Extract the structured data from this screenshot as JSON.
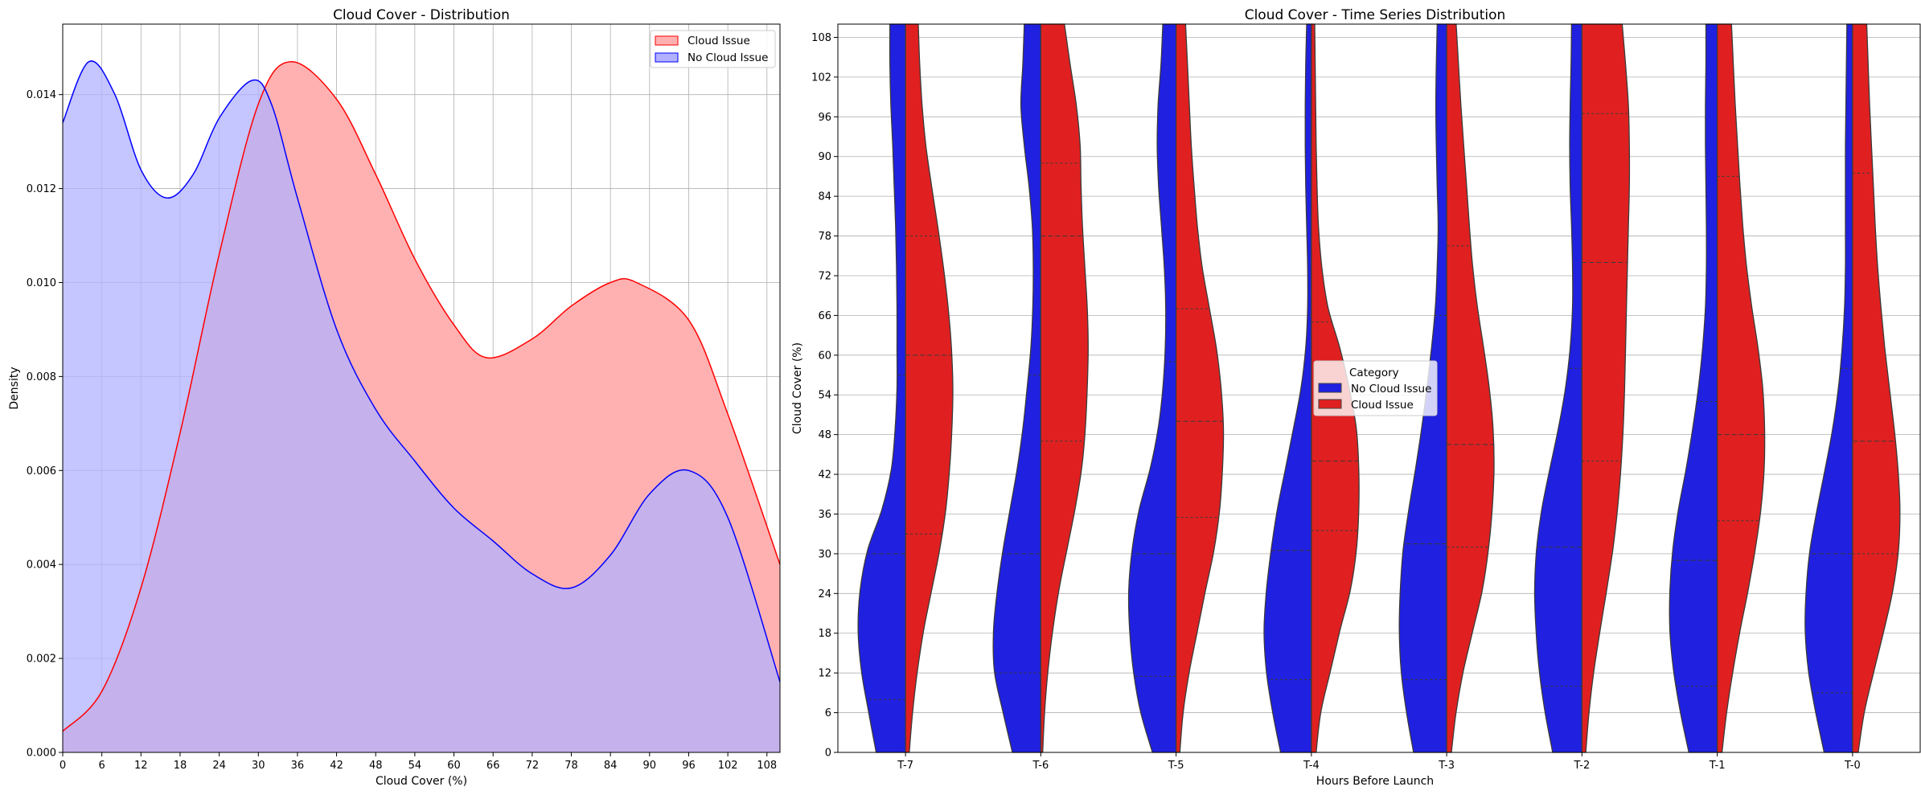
{
  "chart_data": [
    {
      "type": "area",
      "title": "Cloud Cover - Distribution",
      "xlabel": "Cloud Cover (%)",
      "ylabel": "Density",
      "xlim": [
        0,
        110
      ],
      "ylim": [
        0,
        0.0155
      ],
      "xticks": [
        "0",
        "6",
        "12",
        "18",
        "24",
        "30",
        "36",
        "42",
        "48",
        "54",
        "60",
        "66",
        "72",
        "78",
        "84",
        "90",
        "96",
        "102",
        "108"
      ],
      "yticks": [
        "0.000",
        "0.002",
        "0.004",
        "0.006",
        "0.008",
        "0.010",
        "0.012",
        "0.014"
      ],
      "grid": true,
      "legend_position": "top-right",
      "series": [
        {
          "name": "Cloud Issue",
          "color": "#ff0000",
          "fill": "#ffb1b1",
          "x": [
            0,
            6,
            12,
            18,
            24,
            30,
            35,
            42,
            48,
            54,
            60,
            65,
            72,
            78,
            84,
            88,
            96,
            102,
            110
          ],
          "y": [
            0.00045,
            0.0013,
            0.0035,
            0.0068,
            0.0106,
            0.0138,
            0.0147,
            0.0139,
            0.0123,
            0.0105,
            0.0091,
            0.0084,
            0.0088,
            0.0095,
            0.01,
            0.01,
            0.0092,
            0.0072,
            0.004
          ]
        },
        {
          "name": "No Cloud Issue",
          "color": "#0000ff",
          "fill": "#b1b1ff",
          "x": [
            0,
            4,
            8,
            12,
            16,
            20,
            24,
            29,
            32,
            36,
            42,
            48,
            54,
            60,
            66,
            72,
            78,
            84,
            90,
            96,
            102,
            110
          ],
          "y": [
            0.0134,
            0.0147,
            0.014,
            0.0124,
            0.0118,
            0.0123,
            0.0135,
            0.0143,
            0.0138,
            0.0118,
            0.009,
            0.0073,
            0.0062,
            0.0052,
            0.0045,
            0.0038,
            0.0035,
            0.0042,
            0.0055,
            0.006,
            0.005,
            0.0015
          ]
        }
      ]
    },
    {
      "type": "violin",
      "title": "Cloud Cover - Time Series Distribution",
      "xlabel": "Hours Before Launch",
      "ylabel": "Cloud Cover (%)",
      "categories": [
        "T-7",
        "T-6",
        "T-5",
        "T-4",
        "T-3",
        "T-2",
        "T-1",
        "T-0"
      ],
      "ylim": [
        0,
        110
      ],
      "yticks": [
        "0",
        "6",
        "12",
        "18",
        "24",
        "30",
        "36",
        "42",
        "48",
        "54",
        "60",
        "66",
        "72",
        "78",
        "84",
        "90",
        "96",
        "102",
        "108"
      ],
      "grid": true,
      "legend_title": "Category",
      "legend_position": "center",
      "series": [
        {
          "name": "No Cloud Issue",
          "color": "#2020e0",
          "widths": [
            [
              0.62,
              0.78,
              0.93,
              1.0,
              0.96,
              0.8,
              0.5,
              0.3,
              0.22,
              0.18,
              0.18,
              0.18,
              0.19,
              0.21,
              0.24,
              0.27,
              0.31,
              0.33,
              0.33
            ],
            [
              0.6,
              0.8,
              0.98,
              1.0,
              0.92,
              0.8,
              0.65,
              0.5,
              0.38,
              0.29,
              0.21,
              0.17,
              0.16,
              0.18,
              0.25,
              0.35,
              0.42,
              0.38,
              0.35
            ],
            [
              0.5,
              0.75,
              0.9,
              0.98,
              1.0,
              0.93,
              0.78,
              0.55,
              0.38,
              0.28,
              0.23,
              0.22,
              0.25,
              0.31,
              0.37,
              0.4,
              0.38,
              0.32,
              0.28
            ],
            [
              0.65,
              0.82,
              0.95,
              1.0,
              0.95,
              0.85,
              0.72,
              0.55,
              0.38,
              0.22,
              0.12,
              0.08,
              0.08,
              0.1,
              0.12,
              0.13,
              0.13,
              0.12,
              0.1
            ],
            [
              0.7,
              0.85,
              0.96,
              1.0,
              0.98,
              0.92,
              0.8,
              0.66,
              0.53,
              0.42,
              0.32,
              0.24,
              0.2,
              0.18,
              0.2,
              0.22,
              0.23,
              0.22,
              0.2
            ],
            [
              0.62,
              0.78,
              0.9,
              0.97,
              1.0,
              0.96,
              0.85,
              0.68,
              0.5,
              0.35,
              0.25,
              0.2,
              0.2,
              0.22,
              0.25,
              0.26,
              0.25,
              0.23,
              0.22
            ],
            [
              0.6,
              0.78,
              0.92,
              1.0,
              1.0,
              0.94,
              0.82,
              0.66,
              0.52,
              0.4,
              0.31,
              0.25,
              0.23,
              0.23,
              0.24,
              0.25,
              0.25,
              0.24,
              0.24
            ],
            [
              0.6,
              0.78,
              0.93,
              1.0,
              0.98,
              0.9,
              0.75,
              0.58,
              0.42,
              0.3,
              0.22,
              0.17,
              0.15,
              0.15,
              0.15,
              0.15,
              0.14,
              0.13,
              0.12
            ]
          ],
          "quartiles": [
            [
              8,
              30,
              57
            ],
            [
              12,
              30,
              57
            ],
            [
              11.5,
              30,
              59
            ],
            [
              11,
              30.5,
              66
            ],
            [
              11,
              31.5,
              66
            ],
            [
              10,
              31,
              58
            ],
            [
              10,
              29,
              53
            ],
            [
              9,
              30,
              58
            ]
          ]
        },
        {
          "name": "Cloud Issue",
          "color": "#e02020",
          "widths": [
            [
              0.08,
              0.15,
              0.25,
              0.38,
              0.55,
              0.72,
              0.85,
              0.93,
              0.98,
              1.0,
              0.97,
              0.9,
              0.8,
              0.68,
              0.55,
              0.43,
              0.35,
              0.3,
              0.27
            ],
            [
              0.04,
              0.08,
              0.15,
              0.25,
              0.38,
              0.55,
              0.72,
              0.86,
              0.94,
              0.98,
              1.0,
              0.98,
              0.93,
              0.88,
              0.85,
              0.83,
              0.75,
              0.62,
              0.5
            ],
            [
              0.08,
              0.15,
              0.28,
              0.45,
              0.62,
              0.8,
              0.92,
              0.98,
              1.0,
              0.95,
              0.85,
              0.7,
              0.55,
              0.45,
              0.38,
              0.32,
              0.28,
              0.24,
              0.2
            ],
            [
              0.1,
              0.2,
              0.4,
              0.6,
              0.82,
              0.95,
              1.0,
              1.0,
              0.95,
              0.8,
              0.6,
              0.35,
              0.22,
              0.15,
              0.12,
              0.1,
              0.09,
              0.08,
              0.07
            ],
            [
              0.1,
              0.2,
              0.35,
              0.55,
              0.75,
              0.88,
              0.96,
              1.0,
              0.98,
              0.9,
              0.78,
              0.65,
              0.55,
              0.48,
              0.42,
              0.36,
              0.3,
              0.25,
              0.2
            ],
            [
              0.08,
              0.15,
              0.25,
              0.38,
              0.52,
              0.65,
              0.75,
              0.82,
              0.87,
              0.9,
              0.92,
              0.94,
              0.96,
              0.98,
              1.0,
              1.0,
              0.98,
              0.92,
              0.85
            ],
            [
              0.1,
              0.2,
              0.33,
              0.48,
              0.65,
              0.8,
              0.92,
              0.99,
              1.0,
              0.96,
              0.86,
              0.73,
              0.62,
              0.54,
              0.48,
              0.43,
              0.38,
              0.34,
              0.3
            ],
            [
              0.12,
              0.25,
              0.45,
              0.66,
              0.85,
              0.97,
              1.0,
              0.96,
              0.88,
              0.78,
              0.68,
              0.6,
              0.53,
              0.48,
              0.44,
              0.4,
              0.36,
              0.33,
              0.3
            ]
          ],
          "quartiles": [
            [
              33,
              60,
              78
            ],
            [
              47,
              78,
              89
            ],
            [
              35.5,
              50,
              67
            ],
            [
              33.5,
              44,
              65
            ],
            [
              31,
              46.5,
              76.5
            ],
            [
              44,
              74,
              96.5
            ],
            [
              35,
              48,
              87
            ],
            [
              30,
              47,
              87.5
            ]
          ]
        }
      ]
    }
  ]
}
